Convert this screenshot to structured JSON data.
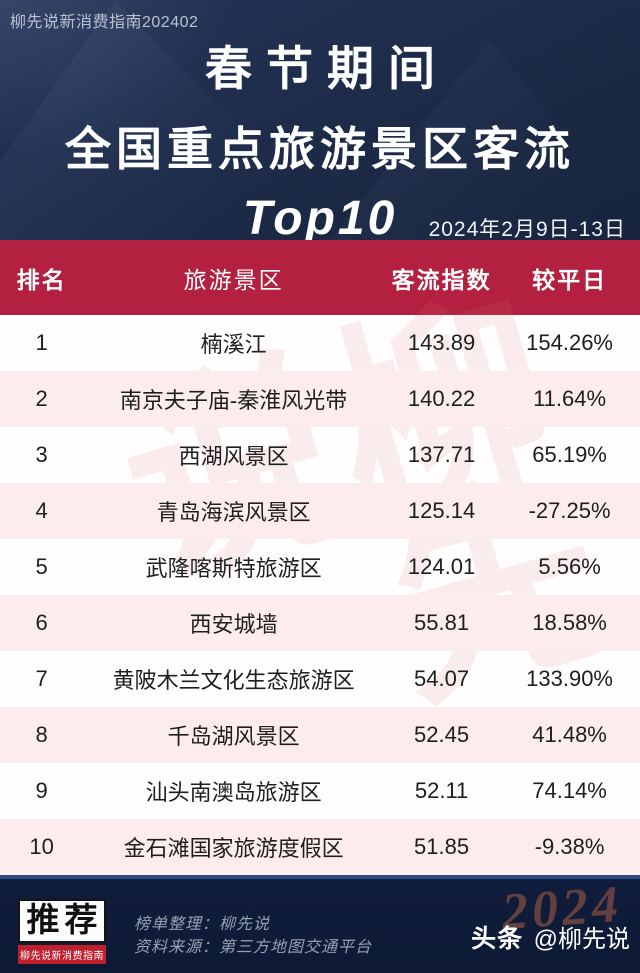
{
  "meta": {
    "corner_tag": "柳先说新消费指南202402",
    "date_range": "2024年2月9日-13日"
  },
  "header": {
    "title_line1": "春节期间",
    "title_line2": "全国重点旅游景区客流",
    "title_line3": "Top10"
  },
  "table": {
    "columns": [
      "排名",
      "旅游景区",
      "客流指数",
      "较平日"
    ],
    "rows": [
      {
        "rank": "1",
        "name": "楠溪江",
        "index": "143.89",
        "change": "154.26%"
      },
      {
        "rank": "2",
        "name": "南京夫子庙-秦淮风光带",
        "index": "140.22",
        "change": "11.64%"
      },
      {
        "rank": "3",
        "name": "西湖风景区",
        "index": "137.71",
        "change": "65.19%"
      },
      {
        "rank": "4",
        "name": "青岛海滨风景区",
        "index": "125.14",
        "change": "-27.25%"
      },
      {
        "rank": "5",
        "name": "武隆喀斯特旅游区",
        "index": "124.01",
        "change": "5.56%"
      },
      {
        "rank": "6",
        "name": "西安城墙",
        "index": "55.81",
        "change": "18.58%"
      },
      {
        "rank": "7",
        "name": "黄陂木兰文化生态旅游区",
        "index": "54.07",
        "change": "133.90%"
      },
      {
        "rank": "8",
        "name": "千岛湖风景区",
        "index": "52.45",
        "change": "41.48%"
      },
      {
        "rank": "9",
        "name": "汕头南澳岛旅游区",
        "index": "52.11",
        "change": "74.14%"
      },
      {
        "rank": "10",
        "name": "金石滩国家旅游度假区",
        "index": "51.85",
        "change": "-9.38%"
      }
    ]
  },
  "watermarks": {
    "table_text": "柳先说",
    "year_text": "2024"
  },
  "footer": {
    "badge_main": "推荐",
    "badge_sub": "柳先说新消费指南",
    "credit_line1": "榜单整理：柳先说",
    "credit_line2": "资料来源：第三方地图交通平台",
    "byline_brand": "头条",
    "byline_handle": "@柳先说"
  },
  "colors": {
    "accent_red": "#b42040",
    "row_pink": "#fdecee",
    "bg_navy": "#15203a",
    "footer_line_blue": "#2d4b7e",
    "badge_red": "#c01f2e"
  },
  "chart_data": {
    "type": "table",
    "title": "春节期间全国重点旅游景区客流Top10",
    "subtitle": "2024年2月9日-13日",
    "columns": [
      "排名",
      "旅游景区",
      "客流指数",
      "较平日(%)"
    ],
    "rows": [
      [
        1,
        "楠溪江",
        143.89,
        154.26
      ],
      [
        2,
        "南京夫子庙-秦淮风光带",
        140.22,
        11.64
      ],
      [
        3,
        "西湖风景区",
        137.71,
        65.19
      ],
      [
        4,
        "青岛海滨风景区",
        125.14,
        -27.25
      ],
      [
        5,
        "武隆喀斯特旅游区",
        124.01,
        5.56
      ],
      [
        6,
        "西安城墙",
        55.81,
        18.58
      ],
      [
        7,
        "黄陂木兰文化生态旅游区",
        54.07,
        133.9
      ],
      [
        8,
        "千岛湖风景区",
        52.45,
        41.48
      ],
      [
        9,
        "汕头南澳岛旅游区",
        52.11,
        74.14
      ],
      [
        10,
        "金石滩国家旅游度假区",
        51.85,
        -9.38
      ]
    ],
    "source": "第三方地图交通平台",
    "compiled_by": "柳先说"
  }
}
